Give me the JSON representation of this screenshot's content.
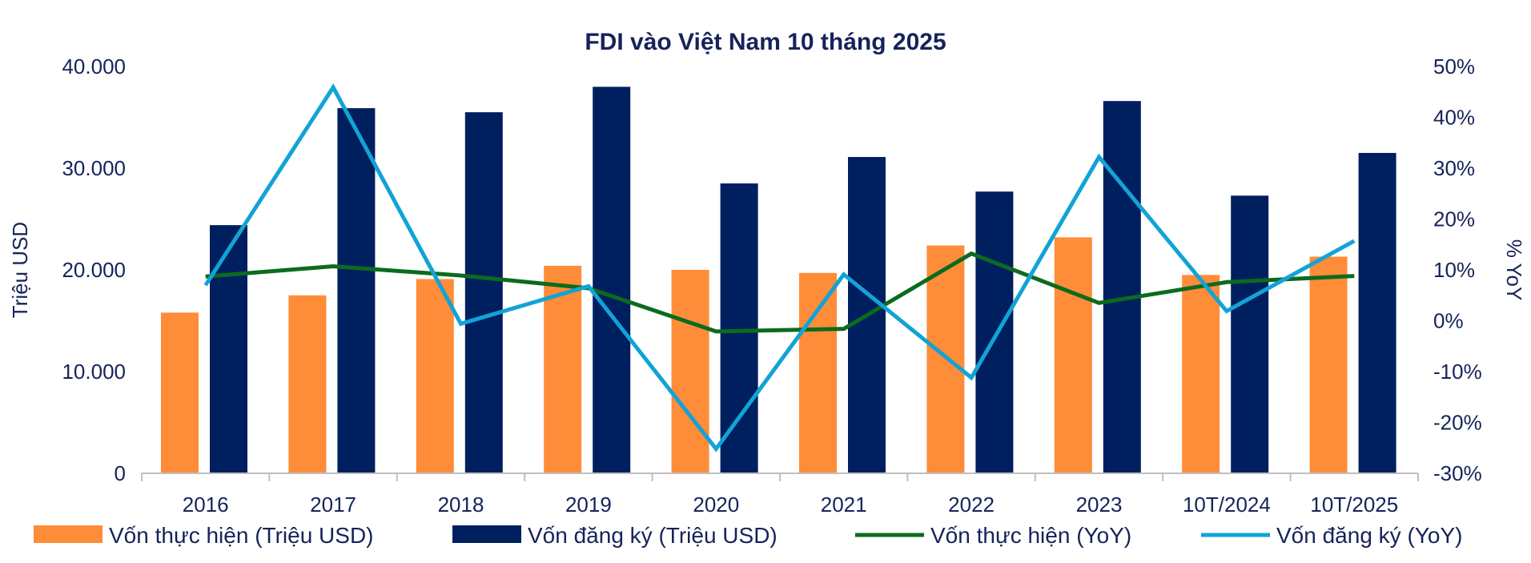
{
  "chart_data": {
    "type": "bar",
    "title": "FDI vào Việt Nam 10 tháng 2025",
    "categories": [
      "2016",
      "2017",
      "2018",
      "2019",
      "2020",
      "2021",
      "2022",
      "2023",
      "10T/2024",
      "10T/2025"
    ],
    "ylabel": "Triệu USD",
    "y2label": "% YoY",
    "ylim": [
      0,
      40000
    ],
    "y2lim": [
      -30,
      50
    ],
    "yticks": [
      "0",
      "10.000",
      "20.000",
      "30.000",
      "40.000"
    ],
    "y2ticks": [
      "-30%",
      "-20%",
      "-10%",
      "0%",
      "10%",
      "20%",
      "30%",
      "40%",
      "50%"
    ],
    "grid": false,
    "legend_position": "bottom",
    "series": [
      {
        "name": "Vốn thực hiện (Triệu USD)",
        "kind": "bar",
        "axis": "left",
        "color": "#ff8c38",
        "values": [
          15800,
          17500,
          19100,
          20400,
          20000,
          19700,
          22400,
          23200,
          19500,
          21300
        ]
      },
      {
        "name": "Vốn đăng ký (Triệu USD)",
        "kind": "bar",
        "axis": "left",
        "color": "#001f5f",
        "values": [
          24400,
          35900,
          35500,
          38000,
          28500,
          31100,
          27700,
          36600,
          27300,
          31500
        ]
      },
      {
        "name": "Vốn thực hiện (YoY)",
        "kind": "line",
        "axis": "right",
        "color": "#0b6b1e",
        "values": [
          8.7,
          10.7,
          8.9,
          6.4,
          -2.1,
          -1.6,
          13.2,
          3.5,
          7.6,
          8.8
        ]
      },
      {
        "name": "Vốn đăng ký (YoY)",
        "kind": "line",
        "axis": "right",
        "color": "#12a3d6",
        "values": [
          7.0,
          45.9,
          -0.6,
          6.8,
          -25.2,
          9.1,
          -11.2,
          32.2,
          1.9,
          15.7
        ]
      }
    ]
  }
}
